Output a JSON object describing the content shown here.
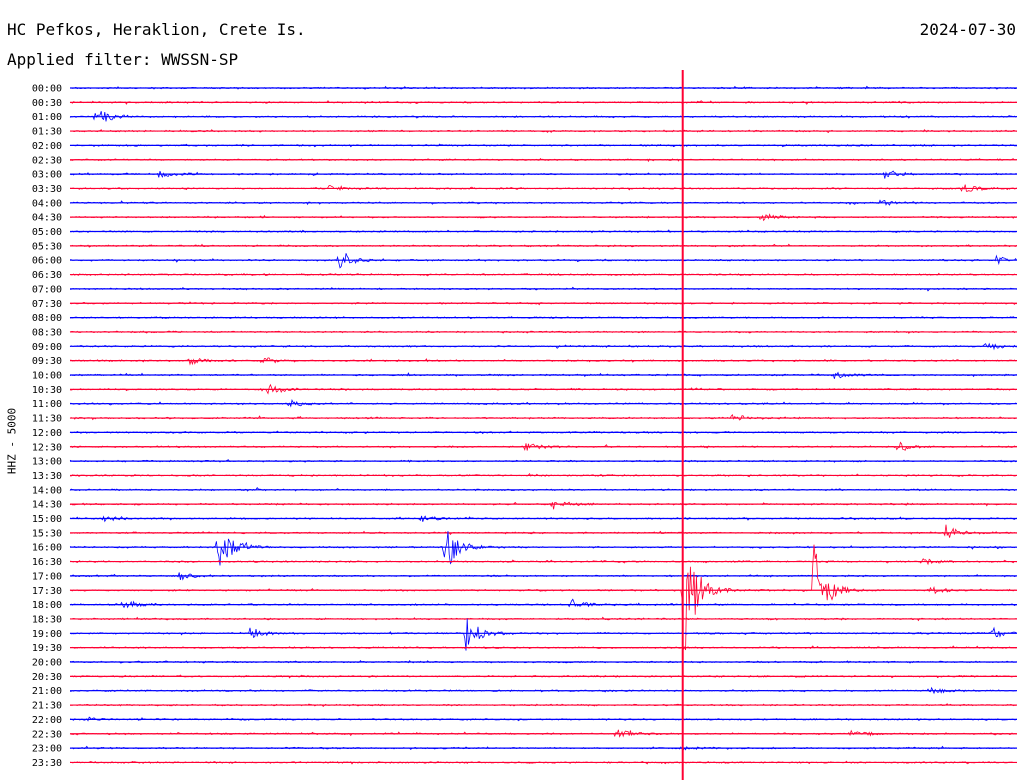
{
  "header": {
    "station": "HC Pefkos, Heraklion, Crete Is.",
    "date": "2024-07-30",
    "filter": "Applied filter: WWSSN-SP"
  },
  "chart_data": {
    "type": "helicorder",
    "ylabel": "HHZ - 5000",
    "row_labels": [
      "00:00",
      "00:30",
      "01:00",
      "01:30",
      "02:00",
      "02:30",
      "03:00",
      "03:30",
      "04:00",
      "04:30",
      "05:00",
      "05:30",
      "06:00",
      "06:30",
      "07:00",
      "07:30",
      "08:00",
      "08:30",
      "09:00",
      "09:30",
      "10:00",
      "10:30",
      "11:00",
      "11:30",
      "12:00",
      "12:30",
      "13:00",
      "13:30",
      "14:00",
      "14:30",
      "15:00",
      "15:30",
      "16:00",
      "16:30",
      "17:00",
      "17:30",
      "18:00",
      "18:30",
      "19:00",
      "19:30",
      "20:00",
      "20:30",
      "21:00",
      "21:30",
      "22:00",
      "22:30",
      "23:00",
      "23:30"
    ],
    "colors": {
      "even_rows": "#0000ff",
      "odd_rows": "#ff0033",
      "current_time_marker": "#ff0033"
    },
    "current_time_marker_at_fraction": 0.647,
    "events": [
      {
        "row": 2,
        "x_fraction": 0.025,
        "amplitude": 0.9
      },
      {
        "row": 6,
        "x_fraction": 0.093,
        "amplitude": 0.4
      },
      {
        "row": 7,
        "x_fraction": 0.27,
        "amplitude": 0.3
      },
      {
        "row": 6,
        "x_fraction": 0.86,
        "amplitude": 0.4
      },
      {
        "row": 7,
        "x_fraction": 0.943,
        "amplitude": 0.45
      },
      {
        "row": 8,
        "x_fraction": 0.855,
        "amplitude": 0.3
      },
      {
        "row": 9,
        "x_fraction": 0.73,
        "amplitude": 0.35
      },
      {
        "row": 12,
        "x_fraction": 0.284,
        "amplitude": 0.9
      },
      {
        "row": 12,
        "x_fraction": 0.978,
        "amplitude": 0.3
      },
      {
        "row": 18,
        "x_fraction": 0.965,
        "amplitude": 0.35
      },
      {
        "row": 19,
        "x_fraction": 0.126,
        "amplitude": 0.3
      },
      {
        "row": 19,
        "x_fraction": 0.202,
        "amplitude": 0.35
      },
      {
        "row": 20,
        "x_fraction": 0.806,
        "amplitude": 0.3
      },
      {
        "row": 21,
        "x_fraction": 0.209,
        "amplitude": 0.5
      },
      {
        "row": 22,
        "x_fraction": 0.23,
        "amplitude": 0.4
      },
      {
        "row": 23,
        "x_fraction": 0.697,
        "amplitude": 0.35
      },
      {
        "row": 25,
        "x_fraction": 0.48,
        "amplitude": 0.4
      },
      {
        "row": 25,
        "x_fraction": 0.872,
        "amplitude": 0.5
      },
      {
        "row": 29,
        "x_fraction": 0.51,
        "amplitude": 0.4
      },
      {
        "row": 30,
        "x_fraction": 0.035,
        "amplitude": 0.25
      },
      {
        "row": 30,
        "x_fraction": 0.37,
        "amplitude": 0.3
      },
      {
        "row": 31,
        "x_fraction": 0.925,
        "amplitude": 0.6
      },
      {
        "row": 32,
        "x_fraction": 0.155,
        "amplitude": 2.6
      },
      {
        "row": 32,
        "x_fraction": 0.395,
        "amplitude": 2.2
      },
      {
        "row": 33,
        "x_fraction": 0.9,
        "amplitude": 0.3
      },
      {
        "row": 34,
        "x_fraction": 0.115,
        "amplitude": 0.3
      },
      {
        "row": 35,
        "x_fraction": 0.647,
        "amplitude": 6.0
      },
      {
        "row": 35,
        "x_fraction": 0.784,
        "amplitude": 4.2
      },
      {
        "row": 35,
        "x_fraction": 0.908,
        "amplitude": 0.35
      },
      {
        "row": 36,
        "x_fraction": 0.056,
        "amplitude": 0.45
      },
      {
        "row": 36,
        "x_fraction": 0.529,
        "amplitude": 0.45
      },
      {
        "row": 38,
        "x_fraction": 0.418,
        "amplitude": 1.4
      },
      {
        "row": 38,
        "x_fraction": 0.19,
        "amplitude": 0.45
      },
      {
        "row": 38,
        "x_fraction": 0.975,
        "amplitude": 0.4
      },
      {
        "row": 42,
        "x_fraction": 0.907,
        "amplitude": 0.3
      },
      {
        "row": 44,
        "x_fraction": 0.015,
        "amplitude": 0.2
      },
      {
        "row": 45,
        "x_fraction": 0.577,
        "amplitude": 0.45
      },
      {
        "row": 45,
        "x_fraction": 0.824,
        "amplitude": 0.4
      },
      {
        "row": 46,
        "x_fraction": 0.645,
        "amplitude": 0.25
      }
    ]
  }
}
